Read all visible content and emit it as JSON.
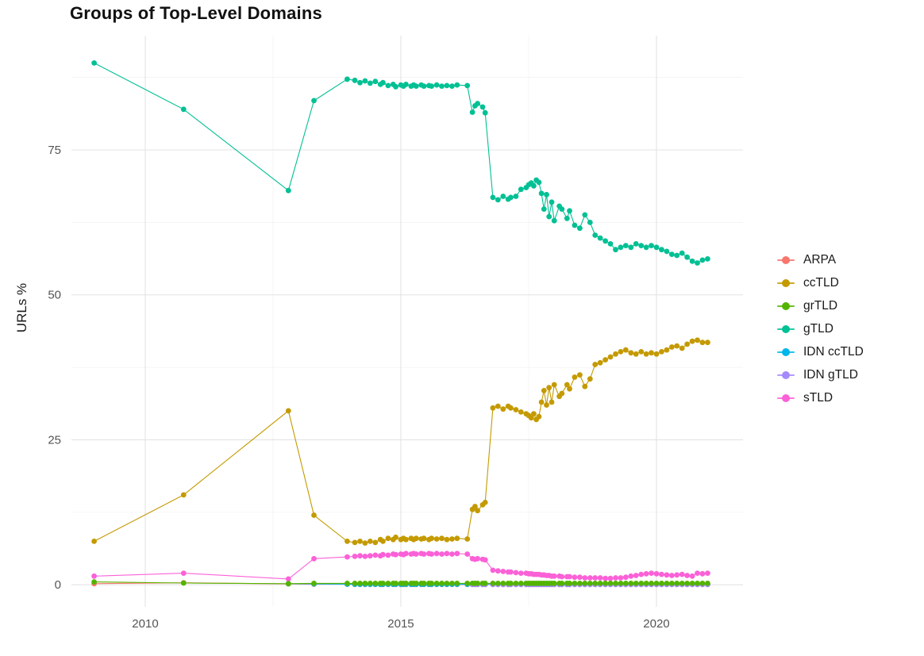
{
  "page_title": "Groups of Top-Level Domains",
  "chart_data": {
    "type": "line",
    "title": "Groups of Top-Level Domains",
    "xlabel": "",
    "ylabel": "URLs %",
    "legend_position": "right",
    "grid": true,
    "xlim": [
      2008.556,
      2021.693
    ],
    "ylim": [
      -3.8,
      94.7
    ],
    "x_ticks": [
      2010,
      2015,
      2020
    ],
    "x_minor_ticks": [
      2012.5,
      2017.5
    ],
    "y_ticks": [
      0,
      25,
      50,
      75
    ],
    "y_minor_ticks": [
      12.5,
      37.5,
      62.5,
      87.5
    ],
    "x": [
      2009.0,
      2010.75,
      2012.8,
      2013.3,
      2013.95,
      2014.1,
      2014.2,
      2014.3,
      2014.4,
      2014.5,
      2014.6,
      2014.65,
      2014.75,
      2014.85,
      2014.9,
      2015.0,
      2015.05,
      2015.1,
      2015.2,
      2015.25,
      2015.3,
      2015.4,
      2015.45,
      2015.55,
      2015.6,
      2015.7,
      2015.8,
      2015.9,
      2016.0,
      2016.1,
      2016.3,
      2016.4,
      2016.45,
      2016.5,
      2016.6,
      2016.65,
      2016.8,
      2016.9,
      2017.0,
      2017.1,
      2017.15,
      2017.25,
      2017.35,
      2017.45,
      2017.5,
      2017.55,
      2017.6,
      2017.65,
      2017.7,
      2017.75,
      2017.8,
      2017.85,
      2017.9,
      2017.95,
      2018.0,
      2018.1,
      2018.15,
      2018.25,
      2018.3,
      2018.4,
      2018.5,
      2018.6,
      2018.7,
      2018.8,
      2018.9,
      2019.0,
      2019.1,
      2019.2,
      2019.3,
      2019.4,
      2019.5,
      2019.6,
      2019.7,
      2019.8,
      2019.9,
      2020.0,
      2020.1,
      2020.2,
      2020.3,
      2020.4,
      2020.5,
      2020.6,
      2020.7,
      2020.8,
      2020.9,
      2021.0
    ],
    "series": [
      {
        "name": "ARPA",
        "color": "#F8766D",
        "values": [
          0.2,
          0.35,
          0.15,
          0.1,
          0.1,
          0.05,
          0.05,
          0.05,
          0.05,
          0.05,
          0.05,
          0.05,
          0.05,
          0.05,
          0.05,
          0.05,
          0.05,
          0.05,
          0.05,
          0.05,
          0.05,
          0.05,
          0.05,
          0.05,
          0.05,
          0.05,
          0.05,
          0.05,
          0.05,
          0.05,
          0.05,
          0.05,
          0.05,
          0.05,
          0.05,
          0.05,
          0.05,
          0.05,
          0.05,
          0.05,
          0.05,
          0.05,
          0.05,
          0.05,
          0.05,
          0.05,
          0.05,
          0.05,
          0.05,
          0.05,
          0.05,
          0.05,
          0.05,
          0.05,
          0.05,
          0.05,
          0.05,
          0.05,
          0.05,
          0.05,
          0.05,
          0.05,
          0.05,
          0.05,
          0.05,
          0.05,
          0.05,
          0.05,
          0.05,
          0.05,
          0.05,
          0.05,
          0.05,
          0.05,
          0.05,
          0.05,
          0.05,
          0.05,
          0.05,
          0.05,
          0.05,
          0.05,
          0.05,
          0.05,
          0.05,
          0.05
        ]
      },
      {
        "name": "ccTLD",
        "color": "#C49A00",
        "values": [
          7.5,
          15.5,
          30.0,
          12.0,
          7.5,
          7.3,
          7.5,
          7.2,
          7.5,
          7.3,
          7.8,
          7.5,
          8.0,
          7.8,
          8.2,
          7.8,
          8.0,
          7.8,
          8.0,
          7.8,
          8.0,
          7.9,
          8.0,
          7.8,
          8.0,
          7.9,
          8.0,
          7.8,
          7.9,
          8.0,
          7.9,
          13.0,
          13.5,
          12.8,
          13.8,
          14.2,
          30.5,
          30.8,
          30.3,
          30.8,
          30.5,
          30.2,
          29.8,
          29.5,
          29.2,
          28.8,
          29.5,
          28.5,
          29.0,
          31.5,
          33.5,
          31.0,
          34.0,
          31.5,
          34.5,
          32.5,
          33.0,
          34.5,
          33.8,
          35.8,
          36.2,
          34.2,
          35.5,
          38.0,
          38.3,
          38.8,
          39.3,
          39.8,
          40.2,
          40.5,
          40.0,
          39.8,
          40.2,
          39.8,
          40.0,
          39.8,
          40.2,
          40.5,
          41.0,
          41.2,
          40.8,
          41.5,
          42.0,
          42.2,
          41.8,
          41.8
        ]
      },
      {
        "name": "grTLD",
        "color": "#53B400",
        "values": [
          0.5,
          0.3,
          0.2,
          0.25,
          0.25,
          0.25,
          0.25,
          0.25,
          0.25,
          0.25,
          0.25,
          0.25,
          0.25,
          0.25,
          0.25,
          0.25,
          0.25,
          0.25,
          0.25,
          0.25,
          0.25,
          0.25,
          0.25,
          0.25,
          0.25,
          0.25,
          0.25,
          0.25,
          0.25,
          0.25,
          0.25,
          0.25,
          0.25,
          0.25,
          0.25,
          0.25,
          0.25,
          0.25,
          0.25,
          0.25,
          0.25,
          0.25,
          0.25,
          0.25,
          0.25,
          0.25,
          0.25,
          0.25,
          0.25,
          0.25,
          0.25,
          0.25,
          0.25,
          0.25,
          0.25,
          0.25,
          0.25,
          0.25,
          0.25,
          0.25,
          0.25,
          0.25,
          0.25,
          0.25,
          0.25,
          0.25,
          0.25,
          0.25,
          0.25,
          0.25,
          0.25,
          0.25,
          0.25,
          0.25,
          0.25,
          0.25,
          0.25,
          0.25,
          0.25,
          0.25,
          0.25,
          0.25,
          0.25,
          0.25,
          0.25,
          0.25
        ]
      },
      {
        "name": "gTLD",
        "color": "#00C094",
        "values": [
          90,
          82,
          68,
          83.5,
          87.2,
          87,
          86.6,
          86.9,
          86.5,
          86.8,
          86.3,
          86.6,
          86.1,
          86.3,
          85.9,
          86.2,
          86.0,
          86.3,
          86.0,
          86.2,
          86.0,
          86.2,
          86.0,
          86.1,
          86.0,
          86.2,
          86.0,
          86.1,
          86.0,
          86.2,
          86.1,
          81.5,
          82.6,
          83.0,
          82.4,
          81.4,
          66.8,
          66.4,
          67.0,
          66.5,
          66.8,
          67.0,
          68.2,
          68.5,
          69.0,
          69.3,
          68.8,
          69.8,
          69.4,
          67.5,
          64.8,
          67.3,
          63.5,
          66.0,
          62.8,
          65.3,
          64.8,
          63.2,
          64.5,
          62.0,
          61.5,
          63.8,
          62.5,
          60.3,
          59.8,
          59.3,
          58.8,
          57.8,
          58.2,
          58.5,
          58.2,
          58.8,
          58.5,
          58.2,
          58.5,
          58.2,
          57.8,
          57.5,
          57.0,
          56.8,
          57.2,
          56.5,
          55.8,
          55.5,
          56.0,
          56.2
        ]
      },
      {
        "name": "IDN ccTLD",
        "color": "#00B6EB",
        "values": [
          null,
          null,
          0.2,
          0.15,
          0.1,
          0.08,
          0.08,
          0.08,
          0.08,
          0.08,
          0.08,
          0.08,
          0.08,
          0.08,
          0.08,
          0.08,
          0.08,
          0.08,
          0.08,
          0.08,
          0.08,
          0.08,
          0.08,
          0.08,
          0.08,
          0.08,
          0.08,
          0.08,
          0.08,
          0.08,
          0.08,
          0.08,
          0.08,
          0.08,
          0.08,
          0.08,
          0.08,
          0.08,
          0.08,
          0.08,
          0.08,
          0.08,
          0.08,
          0.08,
          0.08,
          0.08,
          0.08,
          0.08,
          0.08,
          0.08,
          0.08,
          0.08,
          0.08,
          0.08,
          0.08,
          0.08,
          0.08,
          0.08,
          0.08,
          0.08,
          0.08,
          0.08,
          0.08,
          0.08,
          0.08,
          0.08,
          0.08,
          0.08,
          0.08,
          0.08,
          0.08,
          0.08,
          0.08,
          0.08,
          0.08,
          0.08,
          0.08,
          0.08,
          0.08,
          0.08,
          0.08,
          0.08,
          0.08,
          0.08,
          0.08,
          0.08
        ]
      },
      {
        "name": "IDN gTLD",
        "color": "#A58AFF",
        "values": [
          null,
          null,
          null,
          null,
          null,
          null,
          null,
          null,
          null,
          null,
          null,
          null,
          null,
          null,
          null,
          null,
          null,
          null,
          null,
          null,
          null,
          null,
          null,
          null,
          null,
          null,
          null,
          null,
          null,
          null,
          null,
          0.05,
          0.05,
          0.05,
          0.05,
          0.05,
          0.05,
          0.05,
          0.05,
          0.05,
          0.05,
          0.05,
          0.05,
          0.05,
          0.05,
          0.05,
          0.05,
          0.05,
          0.05,
          0.05,
          0.05,
          0.05,
          0.05,
          0.05,
          0.05,
          0.05,
          0.05,
          0.05,
          0.05,
          0.05,
          0.05,
          0.05,
          0.05,
          0.05,
          0.05,
          0.05,
          0.05,
          0.05,
          0.05,
          0.05,
          0.05,
          0.05,
          0.05,
          0.05,
          0.05,
          0.05,
          0.05,
          0.05,
          0.05,
          0.05,
          0.05,
          0.05,
          0.05,
          0.05,
          0.05,
          0.05
        ]
      },
      {
        "name": "sTLD",
        "color": "#FB61D7",
        "values": [
          1.5,
          2.0,
          1.0,
          4.5,
          4.8,
          4.9,
          5.0,
          4.9,
          5.0,
          5.1,
          5.0,
          5.2,
          5.1,
          5.3,
          5.2,
          5.3,
          5.2,
          5.4,
          5.3,
          5.4,
          5.3,
          5.4,
          5.3,
          5.4,
          5.3,
          5.4,
          5.3,
          5.4,
          5.3,
          5.4,
          5.3,
          4.5,
          4.4,
          4.5,
          4.4,
          4.3,
          2.5,
          2.4,
          2.3,
          2.2,
          2.2,
          2.1,
          2.0,
          2.0,
          1.9,
          1.9,
          1.8,
          1.8,
          1.8,
          1.7,
          1.7,
          1.6,
          1.6,
          1.5,
          1.5,
          1.5,
          1.4,
          1.4,
          1.4,
          1.3,
          1.3,
          1.2,
          1.2,
          1.2,
          1.2,
          1.1,
          1.1,
          1.2,
          1.2,
          1.3,
          1.5,
          1.6,
          1.8,
          1.9,
          2.0,
          1.9,
          1.8,
          1.7,
          1.6,
          1.7,
          1.8,
          1.6,
          1.5,
          2.0,
          1.9,
          2.0
        ]
      }
    ],
    "draw_order": [
      "ARPA",
      "IDN ccTLD",
      "IDN gTLD",
      "ccTLD",
      "gTLD",
      "sTLD",
      "grTLD"
    ]
  }
}
